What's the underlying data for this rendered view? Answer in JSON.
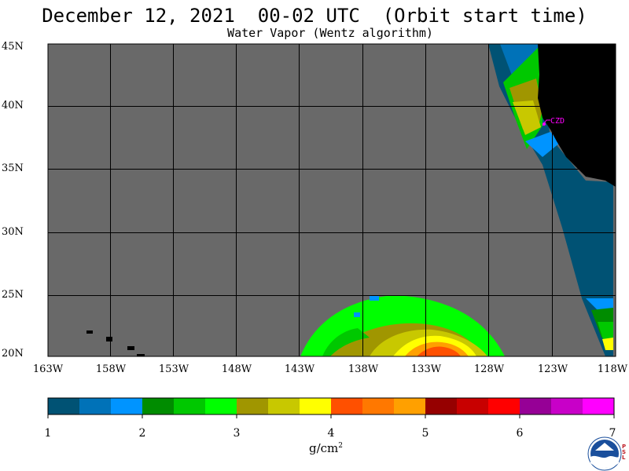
{
  "header": {
    "title": "December 12, 2021  00-02 UTC  (Orbit start time)",
    "subtitle": "Water Vapor (Wentz algorithm)"
  },
  "map": {
    "lat_labels": [
      "45N",
      "40N",
      "35N",
      "30N",
      "25N",
      "20N"
    ],
    "lon_labels": [
      "163W",
      "158W",
      "153W",
      "148W",
      "143W",
      "138W",
      "133W",
      "128W",
      "123W",
      "118W"
    ],
    "station_label": "CZD",
    "colors": {
      "no_data": "#696969",
      "land": "#000000",
      "grid": "#000000",
      "station": "#ff00ff"
    }
  },
  "colorbar": {
    "colors": [
      "#005274",
      "#0072b8",
      "#0094ff",
      "#008c00",
      "#00c800",
      "#00ff00",
      "#a09600",
      "#c8c800",
      "#ffff00",
      "#ff5000",
      "#ff7800",
      "#ffa000",
      "#960000",
      "#c80000",
      "#ff0000",
      "#960096",
      "#c800c8",
      "#ff00ff"
    ],
    "tick_labels": [
      "1",
      "2",
      "3",
      "4",
      "5",
      "6",
      "7"
    ],
    "unit": "g/cm",
    "unit_sup": "2"
  },
  "logo": {
    "icon": "noaa-logo-icon",
    "text": "NOAA",
    "side_text": [
      "P",
      "S",
      "L"
    ]
  }
}
